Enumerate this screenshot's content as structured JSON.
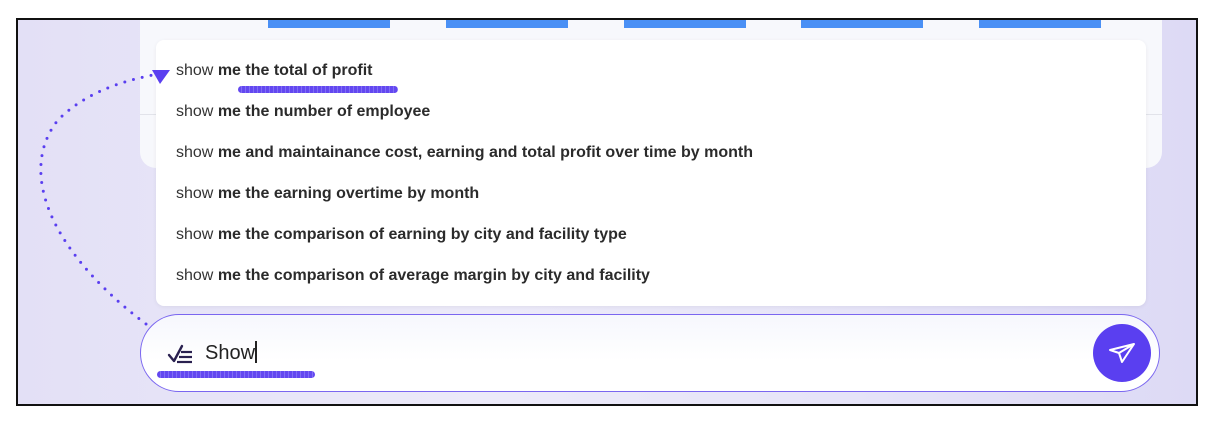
{
  "suggestions": [
    {
      "prefix": "show",
      "rest": "me the total of profit"
    },
    {
      "prefix": "show",
      "rest": "me the number of employee"
    },
    {
      "prefix": "show",
      "rest": "me and maintainance cost, earning and total profit over time by month"
    },
    {
      "prefix": "show",
      "rest": "me the earning overtime by month"
    },
    {
      "prefix": "show",
      "rest": "me the comparison of earning by city and facility type"
    },
    {
      "prefix": "show",
      "rest": "me the comparison of average margin by city and facility"
    }
  ],
  "input": {
    "value": "Show",
    "icon": "checklist-icon"
  },
  "send_button": {
    "icon": "send-icon"
  },
  "colors": {
    "accent": "#5a3ff0",
    "chart_bar": "#4a90f5",
    "background": "#e4e2f7"
  }
}
